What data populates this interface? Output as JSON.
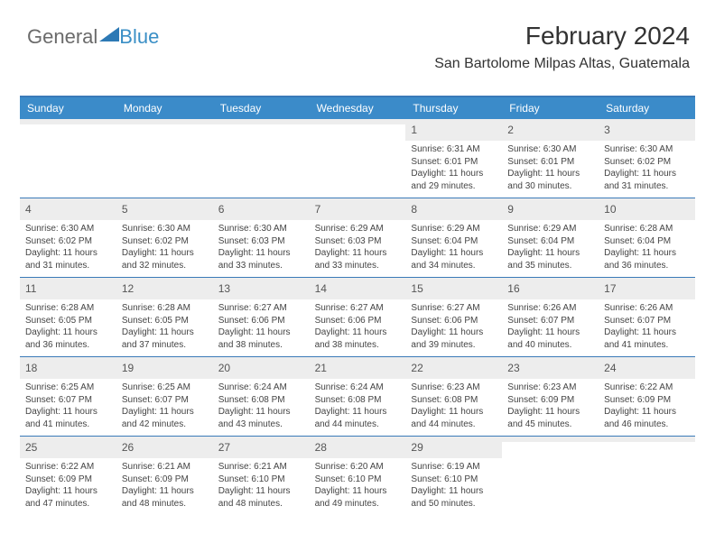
{
  "logo": {
    "text1": "General",
    "text2": "Blue",
    "shape_color": "#2d79b5"
  },
  "header": {
    "month": "February 2024",
    "location": "San Bartolome Milpas Altas, Guatemala"
  },
  "colors": {
    "header_bg": "#3b8bc9",
    "border": "#3a7ab8",
    "daynum_bg": "#ededed"
  },
  "day_names": [
    "Sunday",
    "Monday",
    "Tuesday",
    "Wednesday",
    "Thursday",
    "Friday",
    "Saturday"
  ],
  "weeks": [
    [
      {
        "n": "",
        "sr": "",
        "ss": "",
        "dl": ""
      },
      {
        "n": "",
        "sr": "",
        "ss": "",
        "dl": ""
      },
      {
        "n": "",
        "sr": "",
        "ss": "",
        "dl": ""
      },
      {
        "n": "",
        "sr": "",
        "ss": "",
        "dl": ""
      },
      {
        "n": "1",
        "sr": "Sunrise: 6:31 AM",
        "ss": "Sunset: 6:01 PM",
        "dl": "Daylight: 11 hours and 29 minutes."
      },
      {
        "n": "2",
        "sr": "Sunrise: 6:30 AM",
        "ss": "Sunset: 6:01 PM",
        "dl": "Daylight: 11 hours and 30 minutes."
      },
      {
        "n": "3",
        "sr": "Sunrise: 6:30 AM",
        "ss": "Sunset: 6:02 PM",
        "dl": "Daylight: 11 hours and 31 minutes."
      }
    ],
    [
      {
        "n": "4",
        "sr": "Sunrise: 6:30 AM",
        "ss": "Sunset: 6:02 PM",
        "dl": "Daylight: 11 hours and 31 minutes."
      },
      {
        "n": "5",
        "sr": "Sunrise: 6:30 AM",
        "ss": "Sunset: 6:02 PM",
        "dl": "Daylight: 11 hours and 32 minutes."
      },
      {
        "n": "6",
        "sr": "Sunrise: 6:30 AM",
        "ss": "Sunset: 6:03 PM",
        "dl": "Daylight: 11 hours and 33 minutes."
      },
      {
        "n": "7",
        "sr": "Sunrise: 6:29 AM",
        "ss": "Sunset: 6:03 PM",
        "dl": "Daylight: 11 hours and 33 minutes."
      },
      {
        "n": "8",
        "sr": "Sunrise: 6:29 AM",
        "ss": "Sunset: 6:04 PM",
        "dl": "Daylight: 11 hours and 34 minutes."
      },
      {
        "n": "9",
        "sr": "Sunrise: 6:29 AM",
        "ss": "Sunset: 6:04 PM",
        "dl": "Daylight: 11 hours and 35 minutes."
      },
      {
        "n": "10",
        "sr": "Sunrise: 6:28 AM",
        "ss": "Sunset: 6:04 PM",
        "dl": "Daylight: 11 hours and 36 minutes."
      }
    ],
    [
      {
        "n": "11",
        "sr": "Sunrise: 6:28 AM",
        "ss": "Sunset: 6:05 PM",
        "dl": "Daylight: 11 hours and 36 minutes."
      },
      {
        "n": "12",
        "sr": "Sunrise: 6:28 AM",
        "ss": "Sunset: 6:05 PM",
        "dl": "Daylight: 11 hours and 37 minutes."
      },
      {
        "n": "13",
        "sr": "Sunrise: 6:27 AM",
        "ss": "Sunset: 6:06 PM",
        "dl": "Daylight: 11 hours and 38 minutes."
      },
      {
        "n": "14",
        "sr": "Sunrise: 6:27 AM",
        "ss": "Sunset: 6:06 PM",
        "dl": "Daylight: 11 hours and 38 minutes."
      },
      {
        "n": "15",
        "sr": "Sunrise: 6:27 AM",
        "ss": "Sunset: 6:06 PM",
        "dl": "Daylight: 11 hours and 39 minutes."
      },
      {
        "n": "16",
        "sr": "Sunrise: 6:26 AM",
        "ss": "Sunset: 6:07 PM",
        "dl": "Daylight: 11 hours and 40 minutes."
      },
      {
        "n": "17",
        "sr": "Sunrise: 6:26 AM",
        "ss": "Sunset: 6:07 PM",
        "dl": "Daylight: 11 hours and 41 minutes."
      }
    ],
    [
      {
        "n": "18",
        "sr": "Sunrise: 6:25 AM",
        "ss": "Sunset: 6:07 PM",
        "dl": "Daylight: 11 hours and 41 minutes."
      },
      {
        "n": "19",
        "sr": "Sunrise: 6:25 AM",
        "ss": "Sunset: 6:07 PM",
        "dl": "Daylight: 11 hours and 42 minutes."
      },
      {
        "n": "20",
        "sr": "Sunrise: 6:24 AM",
        "ss": "Sunset: 6:08 PM",
        "dl": "Daylight: 11 hours and 43 minutes."
      },
      {
        "n": "21",
        "sr": "Sunrise: 6:24 AM",
        "ss": "Sunset: 6:08 PM",
        "dl": "Daylight: 11 hours and 44 minutes."
      },
      {
        "n": "22",
        "sr": "Sunrise: 6:23 AM",
        "ss": "Sunset: 6:08 PM",
        "dl": "Daylight: 11 hours and 44 minutes."
      },
      {
        "n": "23",
        "sr": "Sunrise: 6:23 AM",
        "ss": "Sunset: 6:09 PM",
        "dl": "Daylight: 11 hours and 45 minutes."
      },
      {
        "n": "24",
        "sr": "Sunrise: 6:22 AM",
        "ss": "Sunset: 6:09 PM",
        "dl": "Daylight: 11 hours and 46 minutes."
      }
    ],
    [
      {
        "n": "25",
        "sr": "Sunrise: 6:22 AM",
        "ss": "Sunset: 6:09 PM",
        "dl": "Daylight: 11 hours and 47 minutes."
      },
      {
        "n": "26",
        "sr": "Sunrise: 6:21 AM",
        "ss": "Sunset: 6:09 PM",
        "dl": "Daylight: 11 hours and 48 minutes."
      },
      {
        "n": "27",
        "sr": "Sunrise: 6:21 AM",
        "ss": "Sunset: 6:10 PM",
        "dl": "Daylight: 11 hours and 48 minutes."
      },
      {
        "n": "28",
        "sr": "Sunrise: 6:20 AM",
        "ss": "Sunset: 6:10 PM",
        "dl": "Daylight: 11 hours and 49 minutes."
      },
      {
        "n": "29",
        "sr": "Sunrise: 6:19 AM",
        "ss": "Sunset: 6:10 PM",
        "dl": "Daylight: 11 hours and 50 minutes."
      },
      {
        "n": "",
        "sr": "",
        "ss": "",
        "dl": ""
      },
      {
        "n": "",
        "sr": "",
        "ss": "",
        "dl": ""
      }
    ]
  ]
}
